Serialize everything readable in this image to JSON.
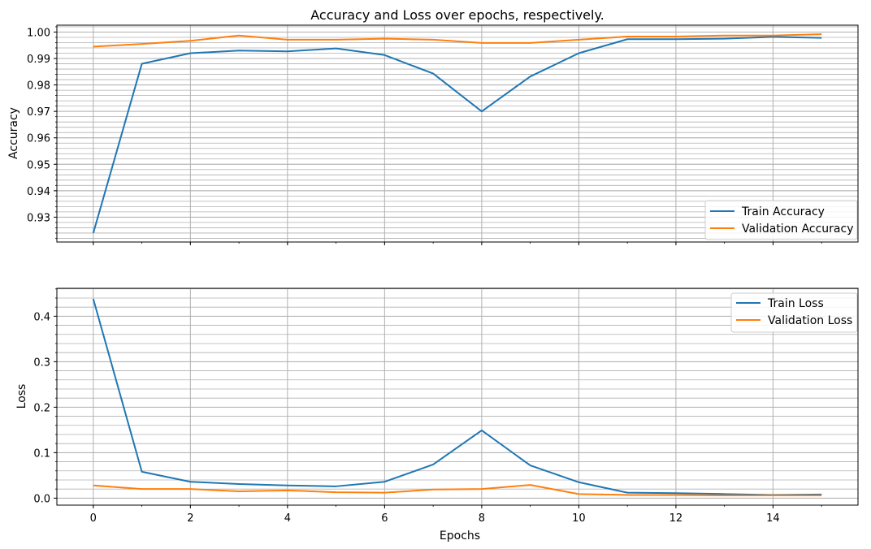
{
  "colors": {
    "train": "#1f77b4",
    "validation": "#ff7f0e",
    "grid": "#b0b0b0",
    "axes": "#000000"
  },
  "chart_data": [
    {
      "type": "line",
      "title": "Accuracy and Loss over epochs, respectively.",
      "xlabel": "",
      "ylabel": "Accuracy",
      "x": [
        0,
        1,
        2,
        3,
        4,
        5,
        6,
        7,
        8,
        9,
        10,
        11,
        12,
        13,
        14,
        15
      ],
      "xlim": [
        -0.75,
        15.75
      ],
      "ylim": [
        0.9206,
        1.0026
      ],
      "xticks": [
        0,
        2,
        4,
        6,
        8,
        10,
        12,
        14
      ],
      "xtick_labels_visible": false,
      "yticks": [
        0.93,
        0.94,
        0.95,
        0.96,
        0.97,
        0.98,
        0.99,
        1.0
      ],
      "ytick_labels": [
        "0.93",
        "0.94",
        "0.95",
        "0.96",
        "0.97",
        "0.98",
        "0.99",
        "1.00"
      ],
      "grid": "major and minor",
      "legend_position": "lower right",
      "series": [
        {
          "name": "Train Accuracy",
          "color": "#1f77b4",
          "values": [
            0.924,
            0.988,
            0.992,
            0.993,
            0.9927,
            0.9938,
            0.9913,
            0.9843,
            0.97,
            0.9832,
            0.992,
            0.9973,
            0.9973,
            0.9975,
            0.9982,
            0.9978
          ]
        },
        {
          "name": "Validation Accuracy",
          "color": "#ff7f0e",
          "values": [
            0.9945,
            0.9955,
            0.9967,
            0.9987,
            0.9971,
            0.9971,
            0.9975,
            0.9971,
            0.9959,
            0.9959,
            0.9971,
            0.9983,
            0.9983,
            0.9987,
            0.9987,
            0.9992
          ]
        }
      ]
    },
    {
      "type": "line",
      "title": "",
      "xlabel": "Epochs",
      "ylabel": "Loss",
      "x": [
        0,
        1,
        2,
        3,
        4,
        5,
        6,
        7,
        8,
        9,
        10,
        11,
        12,
        13,
        14,
        15
      ],
      "xlim": [
        -0.75,
        15.75
      ],
      "ylim": [
        -0.0154,
        0.4614
      ],
      "xticks": [
        0,
        2,
        4,
        6,
        8,
        10,
        12,
        14
      ],
      "xtick_labels": [
        "0",
        "2",
        "4",
        "6",
        "8",
        "10",
        "12",
        "14"
      ],
      "yticks": [
        0.0,
        0.1,
        0.2,
        0.3,
        0.4
      ],
      "ytick_labels": [
        "0.0",
        "0.1",
        "0.2",
        "0.3",
        "0.4"
      ],
      "grid": "major and minor",
      "legend_position": "upper right",
      "series": [
        {
          "name": "Train Loss",
          "color": "#1f77b4",
          "values": [
            0.438,
            0.058,
            0.036,
            0.031,
            0.028,
            0.026,
            0.036,
            0.074,
            0.149,
            0.072,
            0.035,
            0.012,
            0.011,
            0.009,
            0.007,
            0.008
          ]
        },
        {
          "name": "Validation Loss",
          "color": "#ff7f0e",
          "values": [
            0.028,
            0.02,
            0.02,
            0.015,
            0.017,
            0.013,
            0.012,
            0.019,
            0.02,
            0.029,
            0.009,
            0.007,
            0.007,
            0.006,
            0.006,
            0.006
          ]
        }
      ]
    }
  ]
}
